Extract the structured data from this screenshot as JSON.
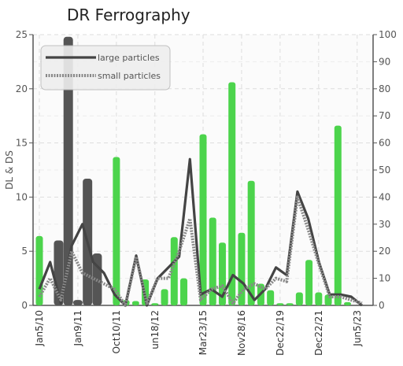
{
  "chart_data": {
    "type": "bar",
    "title": "DR Ferrography",
    "ylabel": "DL & DS",
    "ylim": [
      0,
      25
    ],
    "y2lim": [
      0,
      100
    ],
    "yticks": [
      0,
      5,
      10,
      15,
      20,
      25
    ],
    "y2ticks": [
      0,
      10,
      20,
      30,
      40,
      50,
      60,
      70,
      80,
      90,
      100
    ],
    "x_tick_labels": [
      {
        "index": 0,
        "label": "Jan5/10"
      },
      {
        "index": 4,
        "label": "Jan9/11"
      },
      {
        "index": 8,
        "label": "Oct10/11"
      },
      {
        "index": 12,
        "label": "un18/12"
      },
      {
        "index": 17,
        "label": "Mar23/15"
      },
      {
        "index": 21,
        "label": "Nov28/16"
      },
      {
        "index": 25,
        "label": "Dec22/19"
      },
      {
        "index": 29,
        "label": "Dec22/21"
      },
      {
        "index": 33,
        "label": "Jun5/23"
      }
    ],
    "grid": true,
    "legend_position": "top-left",
    "bars_dark": [
      {
        "index": 2,
        "value": 6
      },
      {
        "index": 3,
        "value": 24.8
      },
      {
        "index": 4,
        "value": 0.5
      },
      {
        "index": 5,
        "value": 11.7
      },
      {
        "index": 6,
        "value": 4.8
      }
    ],
    "bars_green": [
      {
        "index": 0,
        "value": 6.4
      },
      {
        "index": 8,
        "value": 13.7
      },
      {
        "index": 9,
        "value": 0.5
      },
      {
        "index": 10,
        "value": 0.4
      },
      {
        "index": 11,
        "value": 2.4
      },
      {
        "index": 12,
        "value": 0.2
      },
      {
        "index": 13,
        "value": 1.5
      },
      {
        "index": 14,
        "value": 6.3
      },
      {
        "index": 15,
        "value": 2.5
      },
      {
        "index": 17,
        "value": 15.8
      },
      {
        "index": 18,
        "value": 8.1
      },
      {
        "index": 19,
        "value": 5.8
      },
      {
        "index": 20,
        "value": 20.6
      },
      {
        "index": 21,
        "value": 6.7
      },
      {
        "index": 22,
        "value": 11.5
      },
      {
        "index": 23,
        "value": 2.0
      },
      {
        "index": 24,
        "value": 1.4
      },
      {
        "index": 25,
        "value": 0.2
      },
      {
        "index": 26,
        "value": 0.2
      },
      {
        "index": 27,
        "value": 1.2
      },
      {
        "index": 28,
        "value": 4.2
      },
      {
        "index": 29,
        "value": 1.2
      },
      {
        "index": 30,
        "value": 1.0
      },
      {
        "index": 31,
        "value": 16.6
      },
      {
        "index": 32,
        "value": 0.3
      }
    ],
    "series": [
      {
        "name": "large particles",
        "values": [
          1.5,
          4,
          0.2,
          5.5,
          7.5,
          4,
          3,
          1,
          0,
          4.6,
          0,
          2.5,
          3.5,
          4.5,
          13.5,
          1,
          1.5,
          0.8,
          2.8,
          2,
          0.5,
          1.5,
          3.5,
          2.8,
          10.5,
          8,
          4,
          1,
          1,
          0.8,
          0
        ]
      },
      {
        "name": "small particles",
        "values": [
          0.8,
          2.5,
          0.5,
          5.0,
          3,
          2.5,
          2,
          1.5,
          0,
          4.5,
          0.2,
          2.5,
          2.5,
          5,
          8,
          0.5,
          1.5,
          1.8,
          0.2,
          1.5,
          2,
          1.5,
          2.5,
          2.2,
          10,
          7,
          3.8,
          0.8,
          0.8,
          0.5,
          0.2
        ]
      }
    ]
  }
}
